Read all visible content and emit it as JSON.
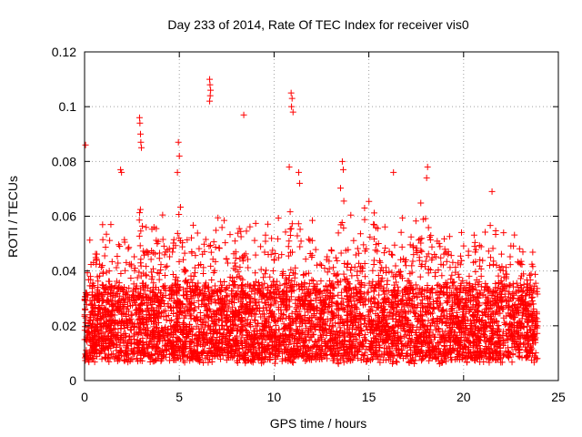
{
  "chart_data": {
    "type": "scatter",
    "title": "Day 233 of 2014, Rate Of TEC Index for receiver vis0",
    "xlabel": "GPS time / hours",
    "ylabel": "ROTI / TECUs",
    "xlim": [
      0,
      25
    ],
    "ylim": [
      0,
      0.12
    ],
    "xticks": [
      0,
      5,
      10,
      15,
      20,
      25
    ],
    "yticks": [
      0,
      0.02,
      0.04,
      0.06,
      0.08,
      0.1,
      0.12
    ],
    "xtick_labels": [
      "0",
      "5",
      "10",
      "15",
      "20",
      "25"
    ],
    "ytick_labels": [
      "0",
      "0.02",
      "0.04",
      "0.06",
      "0.08",
      "0.1",
      "0.12"
    ],
    "grid": true,
    "grid_style": "dotted",
    "marker": "+",
    "color": "#ff0000",
    "x_range_of_data": [
      0.0,
      23.9
    ],
    "dense_band": [
      0.008,
      0.035
    ],
    "envelope": [
      [
        0.0,
        0.055
      ],
      [
        0.5,
        0.052
      ],
      [
        1.0,
        0.06
      ],
      [
        1.5,
        0.058
      ],
      [
        2.0,
        0.065
      ],
      [
        2.5,
        0.062
      ],
      [
        3.0,
        0.07
      ],
      [
        3.5,
        0.066
      ],
      [
        4.0,
        0.062
      ],
      [
        4.5,
        0.064
      ],
      [
        5.0,
        0.068
      ],
      [
        5.5,
        0.064
      ],
      [
        6.0,
        0.062
      ],
      [
        6.5,
        0.066
      ],
      [
        7.0,
        0.064
      ],
      [
        7.5,
        0.06
      ],
      [
        8.0,
        0.058
      ],
      [
        8.5,
        0.064
      ],
      [
        9.0,
        0.063
      ],
      [
        9.5,
        0.06
      ],
      [
        10.0,
        0.058
      ],
      [
        10.5,
        0.062
      ],
      [
        11.0,
        0.066
      ],
      [
        11.5,
        0.065
      ],
      [
        12.0,
        0.062
      ],
      [
        12.5,
        0.06
      ],
      [
        13.0,
        0.066
      ],
      [
        13.5,
        0.074
      ],
      [
        14.0,
        0.064
      ],
      [
        14.5,
        0.062
      ],
      [
        15.0,
        0.068
      ],
      [
        15.5,
        0.064
      ],
      [
        16.0,
        0.062
      ],
      [
        16.5,
        0.066
      ],
      [
        17.0,
        0.062
      ],
      [
        17.5,
        0.064
      ],
      [
        18.0,
        0.07
      ],
      [
        18.5,
        0.06
      ],
      [
        19.0,
        0.062
      ],
      [
        19.5,
        0.058
      ],
      [
        20.0,
        0.06
      ],
      [
        20.5,
        0.058
      ],
      [
        21.0,
        0.064
      ],
      [
        21.5,
        0.066
      ],
      [
        22.0,
        0.06
      ],
      [
        22.5,
        0.058
      ],
      [
        23.0,
        0.058
      ],
      [
        23.5,
        0.055
      ],
      [
        23.9,
        0.05
      ]
    ],
    "outliers": [
      {
        "x": 0.05,
        "y": 0.086
      },
      {
        "x": 1.9,
        "y": 0.077
      },
      {
        "x": 1.95,
        "y": 0.076
      },
      {
        "x": 2.9,
        "y": 0.096
      },
      {
        "x": 2.92,
        "y": 0.094
      },
      {
        "x": 2.95,
        "y": 0.09
      },
      {
        "x": 2.97,
        "y": 0.087
      },
      {
        "x": 3.0,
        "y": 0.085
      },
      {
        "x": 4.95,
        "y": 0.087
      },
      {
        "x": 5.0,
        "y": 0.082
      },
      {
        "x": 4.9,
        "y": 0.076
      },
      {
        "x": 6.6,
        "y": 0.11
      },
      {
        "x": 6.62,
        "y": 0.108
      },
      {
        "x": 6.65,
        "y": 0.106
      },
      {
        "x": 6.63,
        "y": 0.104
      },
      {
        "x": 6.6,
        "y": 0.102
      },
      {
        "x": 8.4,
        "y": 0.097
      },
      {
        "x": 10.9,
        "y": 0.105
      },
      {
        "x": 10.95,
        "y": 0.103
      },
      {
        "x": 10.92,
        "y": 0.1
      },
      {
        "x": 11.0,
        "y": 0.098
      },
      {
        "x": 10.8,
        "y": 0.078
      },
      {
        "x": 11.3,
        "y": 0.076
      },
      {
        "x": 11.35,
        "y": 0.072
      },
      {
        "x": 13.6,
        "y": 0.08
      },
      {
        "x": 13.65,
        "y": 0.077
      },
      {
        "x": 16.3,
        "y": 0.076
      },
      {
        "x": 18.1,
        "y": 0.078
      },
      {
        "x": 18.05,
        "y": 0.074
      },
      {
        "x": 21.5,
        "y": 0.069
      }
    ]
  }
}
